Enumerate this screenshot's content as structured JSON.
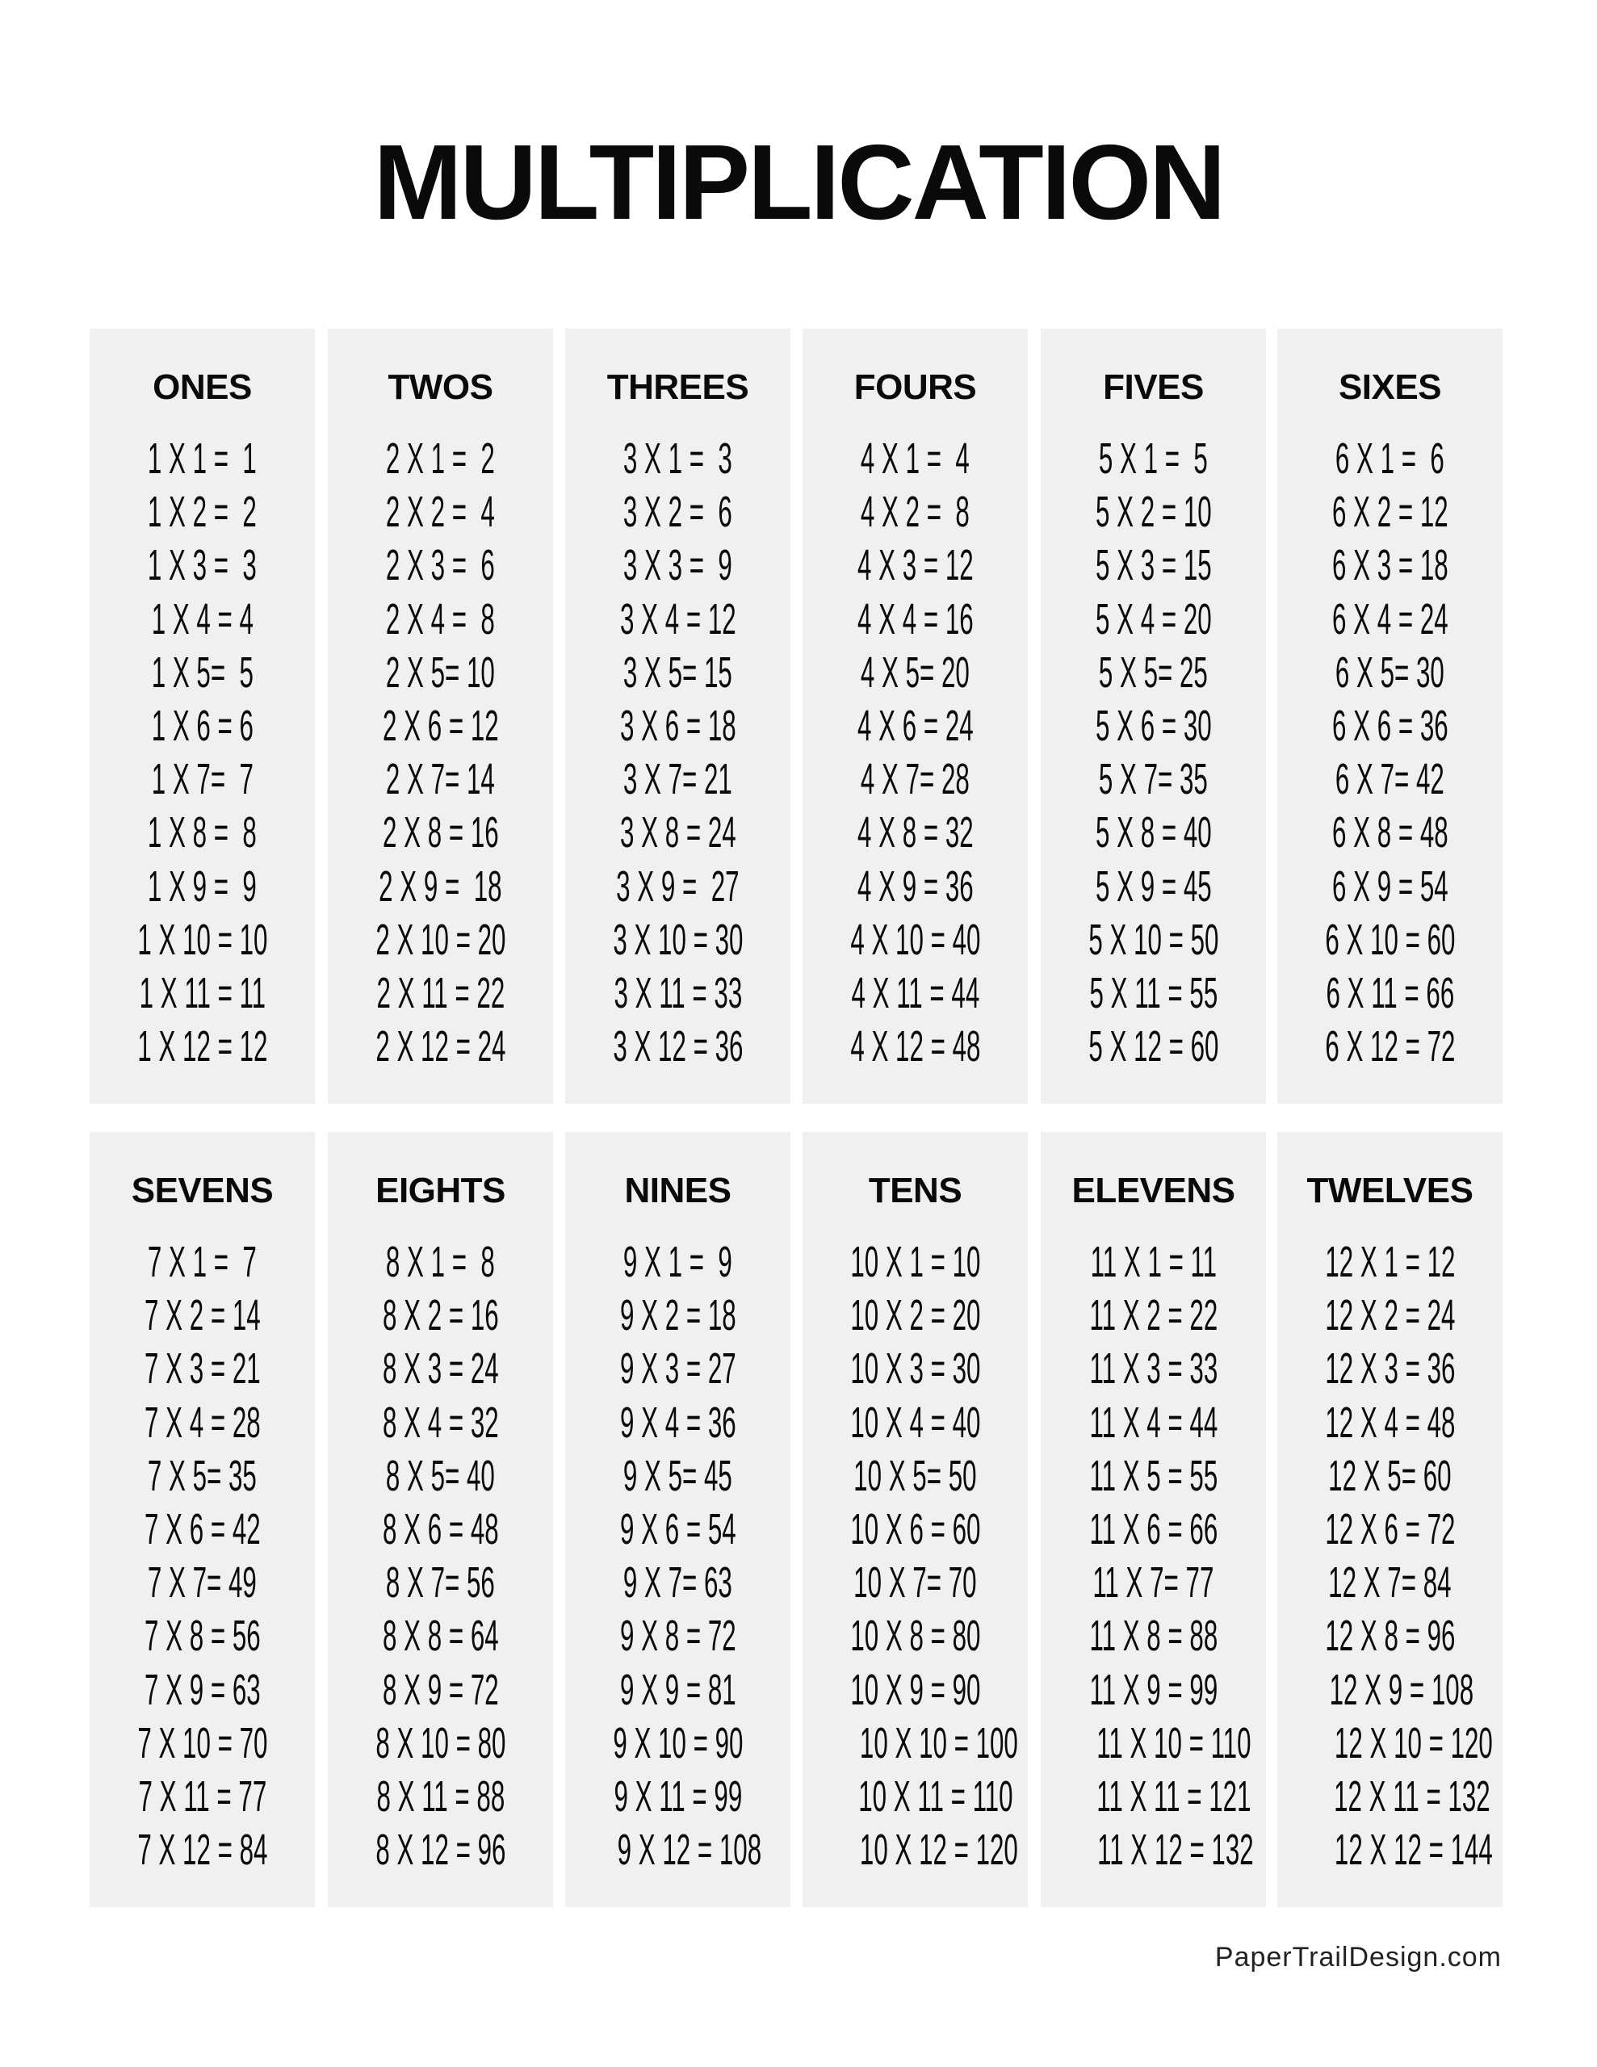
{
  "title": "MULTIPLICATION",
  "tables": [
    {
      "heading": "ONES",
      "rows": [
        "1 X 1 =  1",
        "1 X 2 =  2",
        "1 X 3 =  3",
        "1 X 4 = 4",
        "1 X 5=  5",
        "1 X 6 = 6",
        "1 X 7=  7",
        "1 X 8 =  8",
        "1 X 9 =  9",
        "1 X 10 = 10",
        "1 X 11 = 11",
        "1 X 12 = 12"
      ]
    },
    {
      "heading": "TWOS",
      "rows": [
        "2 X 1 =  2",
        "2 X 2 =  4",
        "2 X 3 =  6",
        "2 X 4 =  8",
        "2 X 5= 10",
        "2 X 6 = 12",
        "2 X 7= 14",
        "2 X 8 = 16",
        "2 X 9 =  18",
        "2 X 10 = 20",
        "2 X 11 = 22",
        "2 X 12 = 24"
      ]
    },
    {
      "heading": "THREES",
      "rows": [
        "3 X 1 =  3",
        "3 X 2 =  6",
        "3 X 3 =  9",
        "3 X 4 = 12",
        "3 X 5= 15",
        "3 X 6 = 18",
        "3 X 7= 21",
        "3 X 8 = 24",
        "3 X 9 =  27",
        "3 X 10 = 30",
        "3 X 11 = 33",
        "3 X 12 = 36"
      ]
    },
    {
      "heading": "FOURS",
      "rows": [
        "4 X 1 =  4",
        "4 X 2 =  8",
        "4 X 3 = 12",
        "4 X 4 = 16",
        "4 X 5= 20",
        "4 X 6 = 24",
        "4 X 7= 28",
        "4 X 8 = 32",
        "4 X 9 = 36",
        "4 X 10 = 40",
        "4 X 11 = 44",
        "4 X 12 = 48"
      ]
    },
    {
      "heading": "FIVES",
      "rows": [
        "5 X 1 =  5",
        "5 X 2 = 10",
        "5 X 3 = 15",
        "5 X 4 = 20",
        "5 X 5= 25",
        "5 X 6 = 30",
        "5 X 7= 35",
        "5 X 8 = 40",
        "5 X 9 = 45",
        "5 X 10 = 50",
        "5 X 11 = 55",
        "5 X 12 = 60"
      ]
    },
    {
      "heading": "SIXES",
      "rows": [
        "6 X 1 =  6",
        "6 X 2 = 12",
        "6 X 3 = 18",
        "6 X 4 = 24",
        "6 X 5= 30",
        "6 X 6 = 36",
        "6 X 7= 42",
        "6 X 8 = 48",
        "6 X 9 = 54",
        "6 X 10 = 60",
        "6 X 11 = 66",
        "6 X 12 = 72"
      ]
    },
    {
      "heading": "SEVENS",
      "rows": [
        "7 X 1 =  7",
        "7 X 2 = 14",
        "7 X 3 = 21",
        "7 X 4 = 28",
        "7 X 5= 35",
        "7 X 6 = 42",
        "7 X 7= 49",
        "7 X 8 = 56",
        "7 X 9 = 63",
        "7 X 10 = 70",
        "7 X 11 = 77",
        "7 X 12 = 84"
      ]
    },
    {
      "heading": "EIGHTS",
      "rows": [
        "8 X 1 =  8",
        "8 X 2 = 16",
        "8 X 3 = 24",
        "8 X 4 = 32",
        "8 X 5= 40",
        "8 X 6 = 48",
        "8 X 7= 56",
        "8 X 8 = 64",
        "8 X 9 = 72",
        "8 X 10 = 80",
        "8 X 11 = 88",
        "8 X 12 = 96"
      ]
    },
    {
      "heading": "NINES",
      "rows": [
        "9 X 1 =  9",
        "9 X 2 = 18",
        "9 X 3 = 27",
        "9 X 4 = 36",
        "9 X 5= 45",
        "9 X 6 = 54",
        "9 X 7= 63",
        "9 X 8 = 72",
        "9 X 9 = 81",
        "9 X 10 = 90",
        "9 X 11 = 99",
        "9 X 12 = 108"
      ]
    },
    {
      "heading": "TENS",
      "rows": [
        "10 X 1 = 10",
        "10 X 2 = 20",
        "10 X 3 = 30",
        "10 X 4 = 40",
        "10 X 5= 50",
        "10 X 6 = 60",
        "10 X 7= 70",
        "10 X 8 = 80",
        "10 X 9 = 90",
        "10 X 10 = 100",
        "10 X 11 = 110",
        "10 X 12 = 120"
      ]
    },
    {
      "heading": "ELEVENS",
      "rows": [
        "11 X 1 = 11",
        "11 X 2 = 22",
        "11 X 3 = 33",
        "11 X 4 = 44",
        "11 X 5 = 55",
        "11 X 6 = 66",
        "11 X 7= 77",
        "11 X 8 = 88",
        "11 X 9 = 99",
        "11 X 10 = 110",
        "11 X 11 = 121",
        "11 X 12 = 132"
      ]
    },
    {
      "heading": "TWELVES",
      "rows": [
        "12 X 1 = 12",
        "12 X 2 = 24",
        "12 X 3 = 36",
        "12 X 4 = 48",
        "12 X 5= 60",
        "12 X 6 = 72",
        "12 X 7= 84",
        "12 X 8 = 96",
        "12 X 9 = 108",
        "12 X 10 = 120",
        "12 X 11 = 132",
        "12 X 12 = 144"
      ]
    }
  ],
  "footer": "PaperTrailDesign.com"
}
